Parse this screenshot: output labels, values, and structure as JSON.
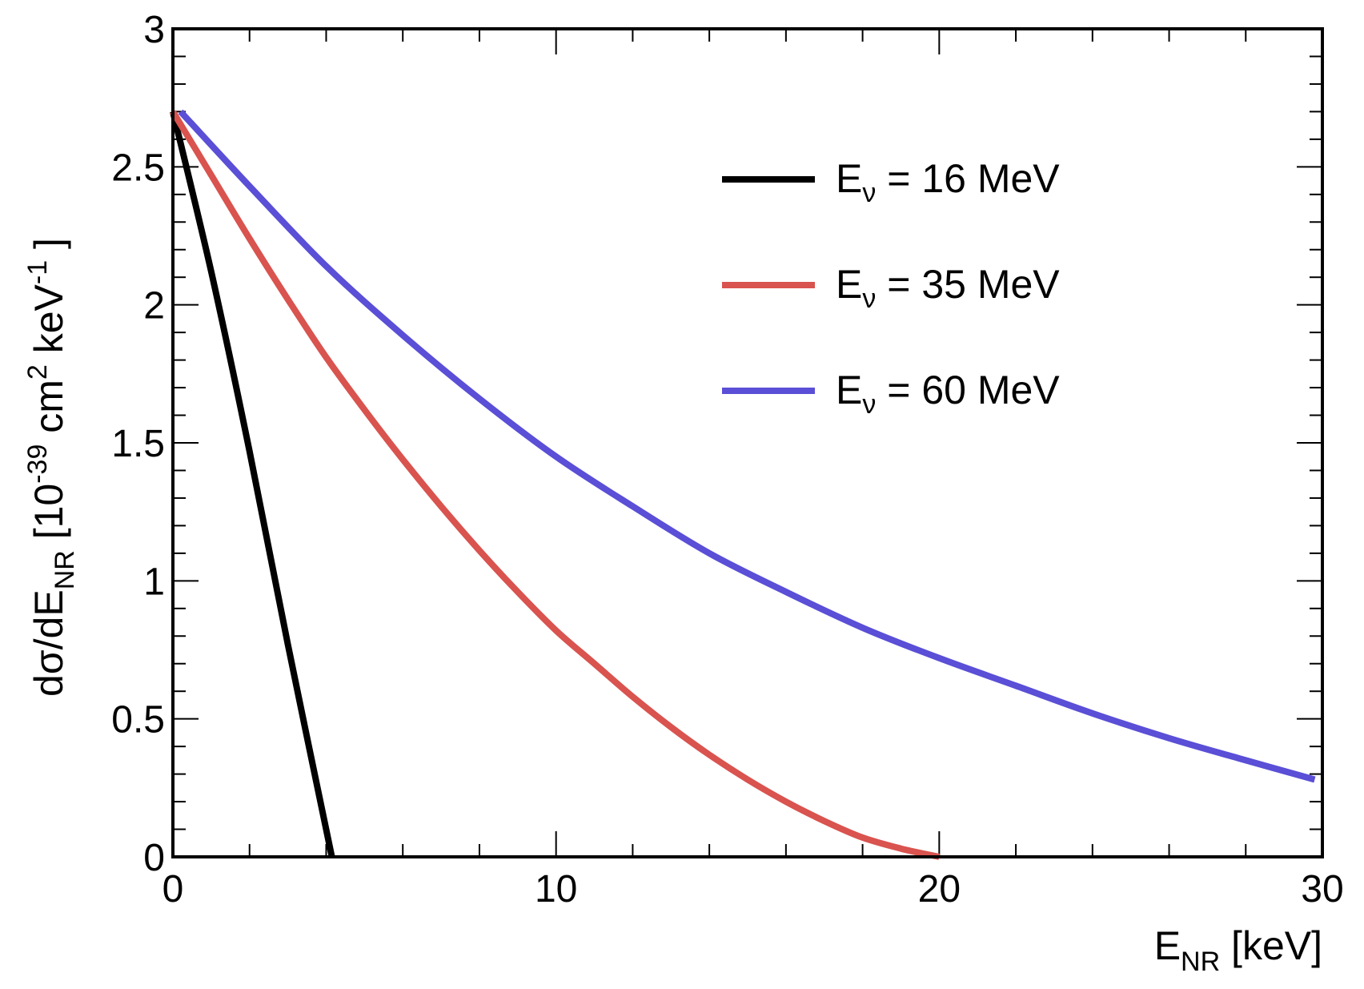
{
  "chart_data": {
    "type": "line",
    "title": "",
    "xlabel": {
      "main": "E",
      "sub": "NR",
      "unit": " [keV]"
    },
    "ylabel": {
      "prefix": "dσ/dE",
      "sub": "NR",
      "bracket_open": " [10",
      "exp1": "-39",
      "mid1": " cm",
      "exp2": "2",
      "mid2": " keV",
      "exp3": "-1",
      "bracket_close": " ]"
    },
    "xlim": [
      0,
      30
    ],
    "ylim": [
      0,
      3
    ],
    "x_major_ticks": [
      0,
      10,
      20,
      30
    ],
    "x_tick_labels": [
      "0",
      "10",
      "20",
      "30"
    ],
    "x_minor_step": 2,
    "y_major_ticks": [
      0,
      0.5,
      1,
      1.5,
      2,
      2.5,
      3
    ],
    "y_tick_labels": [
      "0",
      "0.5",
      "1",
      "1.5",
      "2",
      "2.5",
      "3"
    ],
    "y_minor_step": 0.1,
    "grid": false,
    "legend_position": "top-right",
    "series": [
      {
        "name": "E_ν = 16 MeV",
        "legend": {
          "main": "E",
          "sub": "ν",
          "rest": " = 16 MeV"
        },
        "color": "#000000",
        "x": [
          0,
          1,
          2,
          3,
          4.15
        ],
        "y": [
          2.7,
          2.12,
          1.47,
          0.77,
          0
        ]
      },
      {
        "name": "E_ν = 35 MeV",
        "legend": {
          "main": "E",
          "sub": "ν",
          "rest": " = 35 MeV"
        },
        "color": "#d9534f",
        "x": [
          0,
          1,
          2,
          3,
          4,
          5,
          6,
          7,
          8,
          9,
          10,
          11,
          12,
          13,
          14,
          15,
          16,
          17,
          18,
          19,
          20
        ],
        "y": [
          2.7,
          2.47,
          2.24,
          2.02,
          1.81,
          1.62,
          1.44,
          1.27,
          1.11,
          0.96,
          0.82,
          0.7,
          0.58,
          0.47,
          0.37,
          0.28,
          0.2,
          0.13,
          0.07,
          0.03,
          0
        ]
      },
      {
        "name": "E_ν = 60 MeV",
        "legend": {
          "main": "E",
          "sub": "ν",
          "rest": " = 60 MeV"
        },
        "color": "#5a4fd6",
        "x": [
          0.2,
          2,
          4,
          6,
          8,
          10,
          12,
          14,
          16,
          18,
          20,
          22,
          24,
          26,
          28,
          29.8
        ],
        "y": [
          2.7,
          2.43,
          2.14,
          1.89,
          1.66,
          1.45,
          1.27,
          1.1,
          0.96,
          0.83,
          0.72,
          0.62,
          0.52,
          0.43,
          0.35,
          0.28
        ]
      }
    ]
  }
}
